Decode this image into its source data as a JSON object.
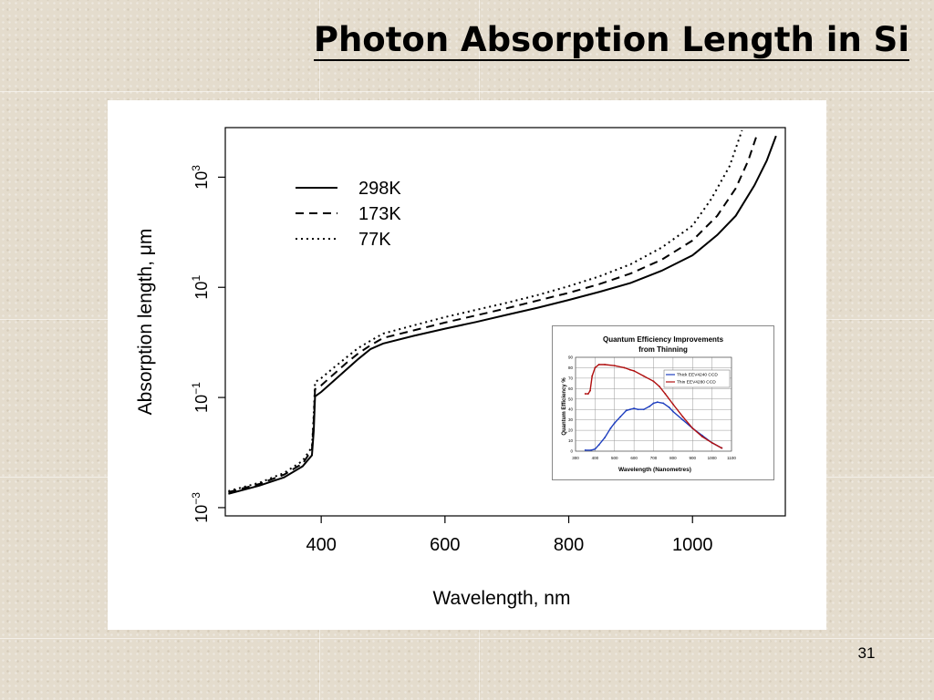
{
  "slide": {
    "title": "Photon Absorption Length in Si",
    "page_number": "31"
  },
  "chart_data": [
    {
      "type": "line",
      "title": "",
      "xlabel": "Wavelength, nm",
      "ylabel": "Absorption length, μm",
      "xlim": [
        245,
        1150
      ],
      "ylim_log10": [
        -3.15,
        3.9
      ],
      "y_scale": "log",
      "x_ticks": [
        400,
        600,
        800,
        1000
      ],
      "y_ticks": [
        {
          "base": "10",
          "exp": "−3",
          "value": -3
        },
        {
          "base": "10",
          "exp": "−1",
          "value": -1
        },
        {
          "base": "10",
          "exp": "1",
          "value": 1
        },
        {
          "base": "10",
          "exp": "3",
          "value": 3
        }
      ],
      "legend_position": "top-left",
      "series": [
        {
          "name": "298K",
          "style": "solid",
          "points": [
            [
              250,
              -2.75
            ],
            [
              300,
              -2.6
            ],
            [
              340,
              -2.45
            ],
            [
              370,
              -2.25
            ],
            [
              385,
              -2.05
            ],
            [
              388,
              -1.6
            ],
            [
              390,
              -0.98
            ],
            [
              400,
              -0.9
            ],
            [
              420,
              -0.7
            ],
            [
              440,
              -0.5
            ],
            [
              460,
              -0.3
            ],
            [
              480,
              -0.12
            ],
            [
              500,
              -0.02
            ],
            [
              550,
              0.12
            ],
            [
              600,
              0.25
            ],
            [
              650,
              0.37
            ],
            [
              700,
              0.5
            ],
            [
              750,
              0.63
            ],
            [
              800,
              0.77
            ],
            [
              850,
              0.92
            ],
            [
              900,
              1.08
            ],
            [
              950,
              1.3
            ],
            [
              1000,
              1.58
            ],
            [
              1040,
              1.95
            ],
            [
              1070,
              2.3
            ],
            [
              1100,
              2.85
            ],
            [
              1120,
              3.3
            ],
            [
              1135,
              3.75
            ]
          ]
        },
        {
          "name": "173K",
          "style": "dashed",
          "points": [
            [
              250,
              -2.72
            ],
            [
              300,
              -2.57
            ],
            [
              340,
              -2.4
            ],
            [
              370,
              -2.2
            ],
            [
              385,
              -1.95
            ],
            [
              388,
              -1.4
            ],
            [
              390,
              -0.85
            ],
            [
              400,
              -0.78
            ],
            [
              420,
              -0.58
            ],
            [
              440,
              -0.38
            ],
            [
              460,
              -0.2
            ],
            [
              480,
              -0.05
            ],
            [
              500,
              0.08
            ],
            [
              550,
              0.22
            ],
            [
              600,
              0.36
            ],
            [
              650,
              0.49
            ],
            [
              700,
              0.62
            ],
            [
              750,
              0.76
            ],
            [
              800,
              0.9
            ],
            [
              850,
              1.06
            ],
            [
              900,
              1.25
            ],
            [
              950,
              1.5
            ],
            [
              1000,
              1.85
            ],
            [
              1040,
              2.3
            ],
            [
              1070,
              2.8
            ],
            [
              1090,
              3.3
            ],
            [
              1105,
              3.8
            ]
          ]
        },
        {
          "name": "77K",
          "style": "dotted",
          "points": [
            [
              250,
              -2.7
            ],
            [
              300,
              -2.55
            ],
            [
              340,
              -2.37
            ],
            [
              370,
              -2.15
            ],
            [
              385,
              -1.9
            ],
            [
              388,
              -1.3
            ],
            [
              390,
              -0.72
            ],
            [
              400,
              -0.65
            ],
            [
              420,
              -0.46
            ],
            [
              440,
              -0.28
            ],
            [
              460,
              -0.1
            ],
            [
              480,
              0.03
            ],
            [
              500,
              0.16
            ],
            [
              550,
              0.31
            ],
            [
              600,
              0.46
            ],
            [
              650,
              0.59
            ],
            [
              700,
              0.72
            ],
            [
              750,
              0.86
            ],
            [
              800,
              1.02
            ],
            [
              850,
              1.2
            ],
            [
              900,
              1.42
            ],
            [
              950,
              1.72
            ],
            [
              1000,
              2.12
            ],
            [
              1030,
              2.6
            ],
            [
              1060,
              3.2
            ],
            [
              1080,
              3.85
            ]
          ]
        }
      ]
    },
    {
      "type": "line",
      "title": "Quantum Efficiency Improvements",
      "subtitle": "from Thinning",
      "xlabel": "Wavelength (Nanometres)",
      "ylabel": "Quantum Efficiency %",
      "xlim": [
        300,
        1100
      ],
      "ylim": [
        0,
        90
      ],
      "x_ticks": [
        "300",
        "400",
        "500",
        "600",
        "700",
        "800",
        "900",
        "1000",
        "1100"
      ],
      "y_ticks": [
        "0",
        "10",
        "20",
        "30",
        "40",
        "50",
        "60",
        "70",
        "80",
        "90"
      ],
      "legend_position": "top-right",
      "series": [
        {
          "name": "Thick EEV4240 CCD",
          "color": "#1f3fbf",
          "points": [
            [
              350,
              1
            ],
            [
              380,
              1
            ],
            [
              400,
              2
            ],
            [
              420,
              6
            ],
            [
              450,
              13
            ],
            [
              480,
              22
            ],
            [
              500,
              27
            ],
            [
              530,
              33
            ],
            [
              560,
              39
            ],
            [
              580,
              40
            ],
            [
              600,
              41
            ],
            [
              620,
              40
            ],
            [
              650,
              40
            ],
            [
              680,
              43
            ],
            [
              700,
              46
            ],
            [
              720,
              47
            ],
            [
              750,
              46
            ],
            [
              780,
              42
            ],
            [
              800,
              38
            ],
            [
              850,
              30
            ],
            [
              900,
              22
            ],
            [
              950,
              15
            ],
            [
              1000,
              8
            ],
            [
              1050,
              3
            ]
          ]
        },
        {
          "name": "Thin EEV4280 CCD",
          "color": "#b01010",
          "points": [
            [
              350,
              55
            ],
            [
              365,
              55
            ],
            [
              375,
              58
            ],
            [
              385,
              72
            ],
            [
              400,
              80
            ],
            [
              420,
              83
            ],
            [
              450,
              83
            ],
            [
              500,
              82
            ],
            [
              550,
              80
            ],
            [
              580,
              78
            ],
            [
              600,
              77
            ],
            [
              650,
              72
            ],
            [
              700,
              67
            ],
            [
              730,
              62
            ],
            [
              760,
              55
            ],
            [
              800,
              45
            ],
            [
              850,
              33
            ],
            [
              900,
              22
            ],
            [
              950,
              14
            ],
            [
              1000,
              8
            ],
            [
              1050,
              3
            ]
          ]
        }
      ]
    }
  ]
}
